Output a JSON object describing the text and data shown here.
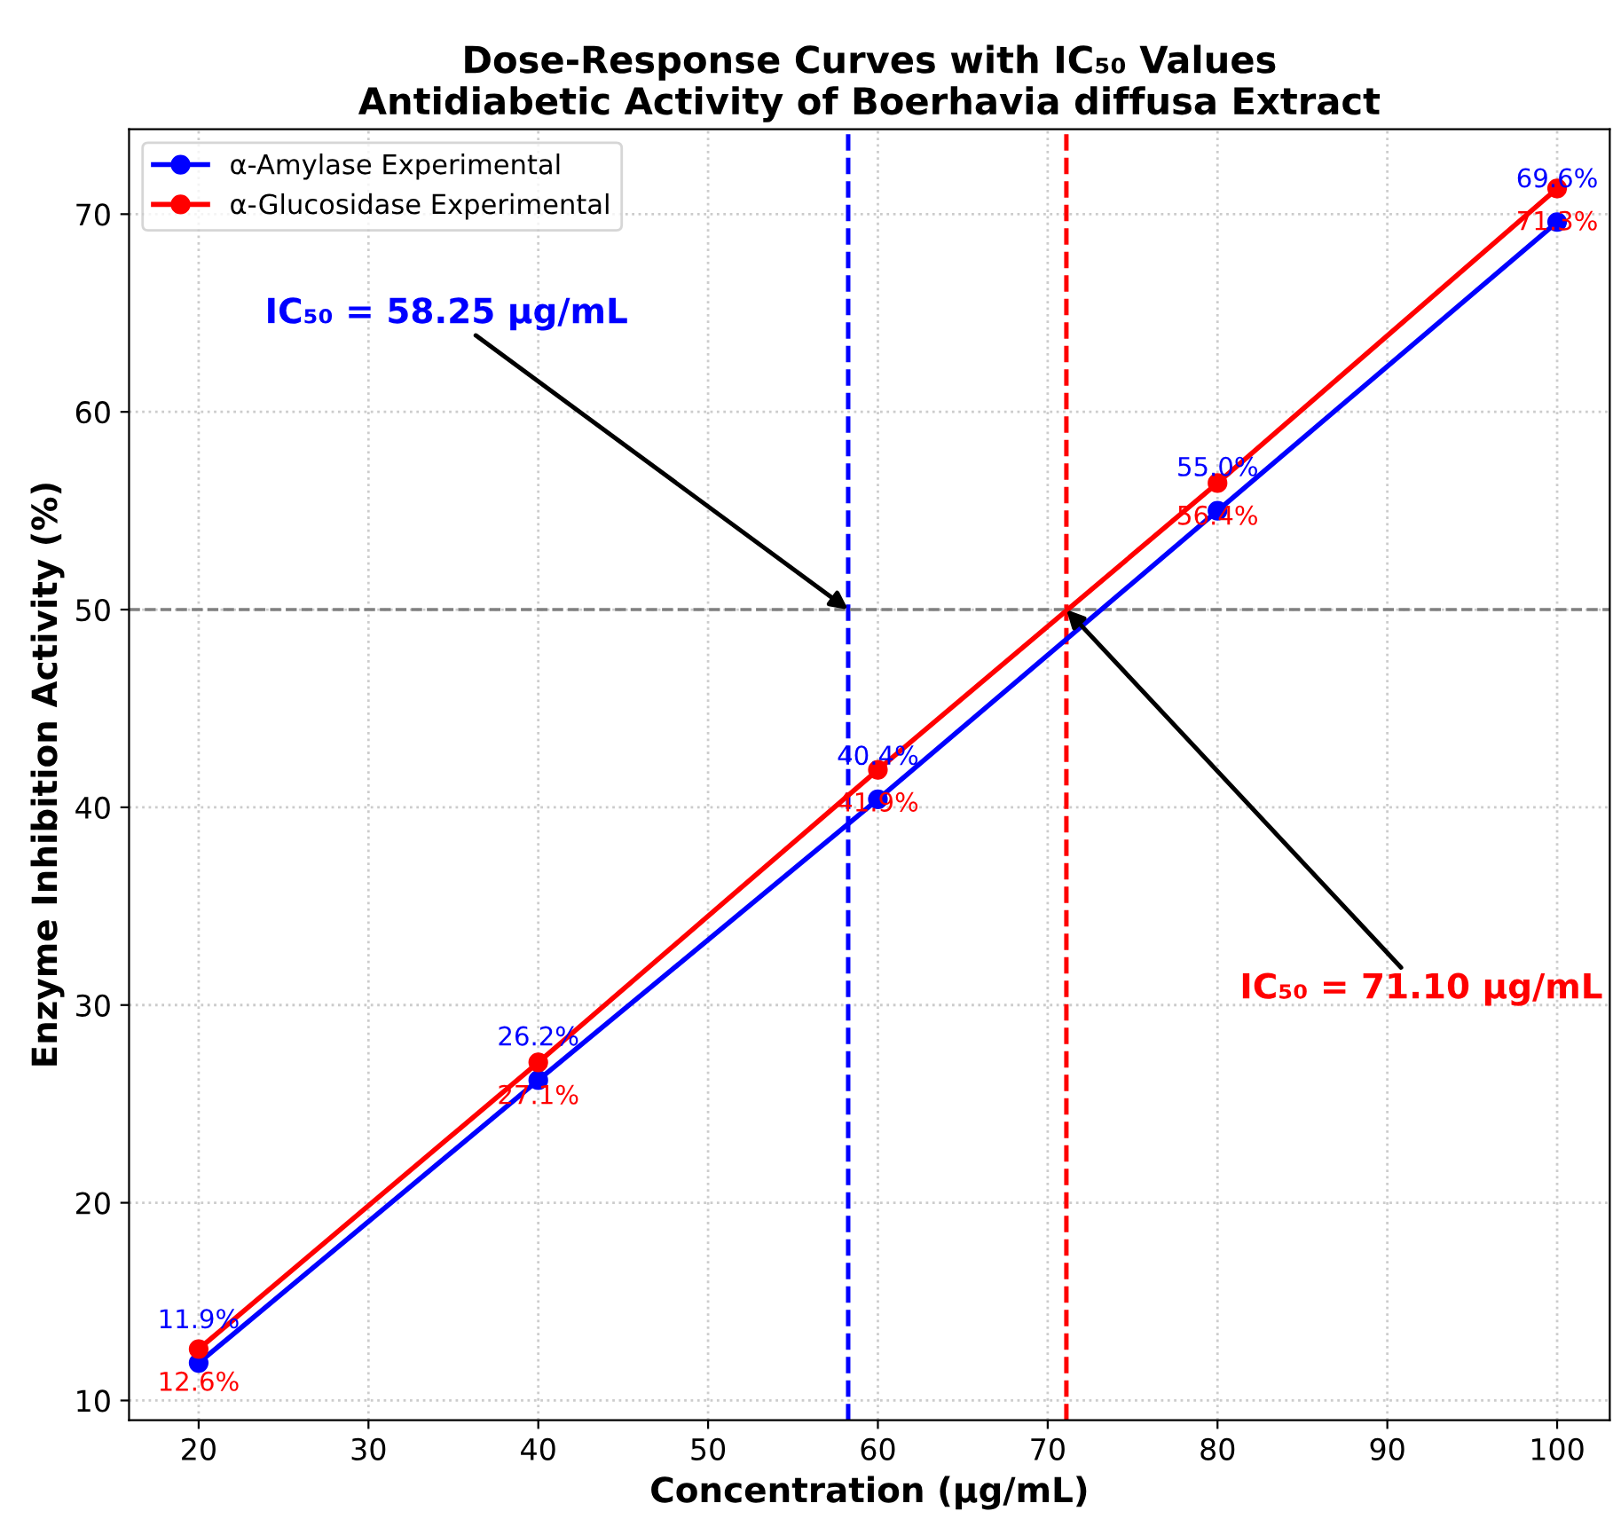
{
  "chart_data": {
    "type": "line",
    "title": "Dose-Response Curves with IC₅₀ Values\nAntidiabetic Activity of Boerhavia diffusa Extract",
    "xlabel": "Concentration (µg/mL)",
    "ylabel": "Enzyme Inhibition Activity (%)",
    "x": [
      20,
      40,
      60,
      80,
      100
    ],
    "series": [
      {
        "name": "α-Amylase Experimental",
        "color": "#0000ff",
        "values": [
          11.9,
          26.2,
          40.4,
          55.0,
          69.6
        ],
        "value_labels": [
          "11.9%",
          "26.2%",
          "40.4%",
          "55.0%",
          "69.6%"
        ]
      },
      {
        "name": "α-Glucosidase Experimental",
        "color": "#ff0000",
        "values": [
          12.6,
          27.1,
          41.9,
          56.4,
          71.3
        ],
        "value_labels": [
          "12.6%",
          "27.1%",
          "41.9%",
          "56.4%",
          "71.3%"
        ]
      }
    ],
    "xlim": [
      15.9,
      103.1
    ],
    "ylim": [
      9.0,
      74.3
    ],
    "xticks": [
      20,
      30,
      40,
      50,
      60,
      70,
      80,
      90,
      100
    ],
    "yticks": [
      10,
      20,
      30,
      40,
      50,
      60,
      70
    ],
    "ref_lines": [
      {
        "axis": "x",
        "value": 58.25,
        "color": "#0000ff",
        "line_style": "dashed"
      },
      {
        "axis": "x",
        "value": 71.1,
        "color": "#ff0000",
        "line_style": "dashed"
      },
      {
        "axis": "y",
        "value": 50,
        "color": "#808080",
        "line_style": "dashed"
      }
    ],
    "annotations": [
      {
        "text": "IC₅₀ = 58.25 µg/mL",
        "x": 58.25,
        "y": 50
      },
      {
        "text": "IC₅₀ = 71.10 µg/mL",
        "x": 71.1,
        "y": 50
      }
    ],
    "grid": true,
    "legend": "top left",
    "marker": "circle",
    "line_style": "solid"
  }
}
